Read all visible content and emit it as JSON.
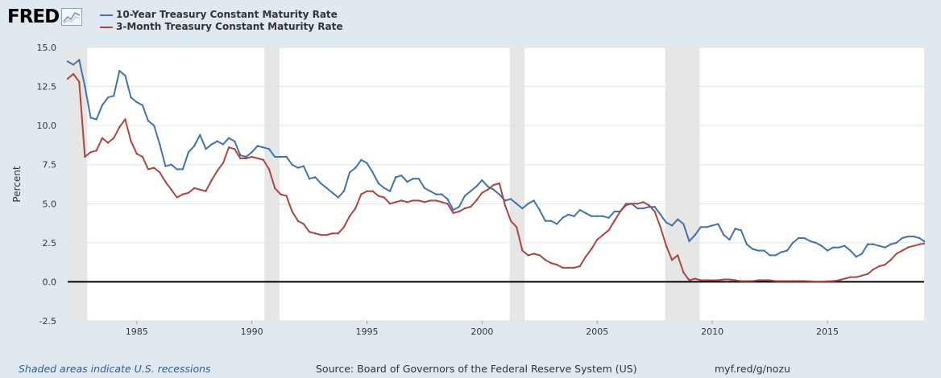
{
  "logo": {
    "text": "FRED",
    "icon": "line-chart-icon"
  },
  "footer": {
    "recession_note": "Shaded areas indicate U.S. recessions",
    "source": "Source: Board of Governors of the Federal Reserve System (US)",
    "short_url": "myf.red/g/nozu"
  },
  "chart_data": {
    "type": "line",
    "ylabel": "Percent",
    "ylim": [
      -2.5,
      15.0
    ],
    "yticks": [
      "15.0",
      "12.5",
      "10.0",
      "7.5",
      "5.0",
      "2.5",
      "0.0",
      "-2.5"
    ],
    "xlim": [
      1982.0,
      2019.2
    ],
    "xticks": [
      "1985",
      "1990",
      "1995",
      "2000",
      "2005",
      "2010",
      "2015"
    ],
    "grid": true,
    "legend_position": "top-left",
    "recessions": [
      [
        1982.0,
        1982.85
      ],
      [
        1990.55,
        1991.2
      ],
      [
        2001.2,
        2001.85
      ],
      [
        2007.95,
        2009.45
      ]
    ],
    "series": [
      {
        "name": "10-Year Treasury Constant Maturity Rate",
        "color": "#4572a7",
        "x": [
          1982.0,
          1982.25,
          1982.5,
          1982.75,
          1983.0,
          1983.25,
          1983.5,
          1983.75,
          1984.0,
          1984.25,
          1984.5,
          1984.75,
          1985.0,
          1985.25,
          1985.5,
          1985.75,
          1986.0,
          1986.25,
          1986.5,
          1986.75,
          1987.0,
          1987.25,
          1987.5,
          1987.75,
          1988.0,
          1988.25,
          1988.5,
          1988.75,
          1989.0,
          1989.25,
          1989.5,
          1989.75,
          1990.0,
          1990.25,
          1990.5,
          1990.75,
          1991.0,
          1991.25,
          1991.5,
          1991.75,
          1992.0,
          1992.25,
          1992.5,
          1992.75,
          1993.0,
          1993.25,
          1993.5,
          1993.75,
          1994.0,
          1994.25,
          1994.5,
          1994.75,
          1995.0,
          1995.25,
          1995.5,
          1995.75,
          1996.0,
          1996.25,
          1996.5,
          1996.75,
          1997.0,
          1997.25,
          1997.5,
          1997.75,
          1998.0,
          1998.25,
          1998.5,
          1998.75,
          1999.0,
          1999.25,
          1999.5,
          1999.75,
          2000.0,
          2000.25,
          2000.5,
          2000.75,
          2001.0,
          2001.25,
          2001.5,
          2001.75,
          2002.0,
          2002.25,
          2002.5,
          2002.75,
          2003.0,
          2003.25,
          2003.5,
          2003.75,
          2004.0,
          2004.25,
          2004.5,
          2004.75,
          2005.0,
          2005.25,
          2005.5,
          2005.75,
          2006.0,
          2006.25,
          2006.5,
          2006.75,
          2007.0,
          2007.25,
          2007.5,
          2007.75,
          2008.0,
          2008.25,
          2008.5,
          2008.75,
          2009.0,
          2009.25,
          2009.5,
          2009.75,
          2010.0,
          2010.25,
          2010.5,
          2010.75,
          2011.0,
          2011.25,
          2011.5,
          2011.75,
          2012.0,
          2012.25,
          2012.5,
          2012.75,
          2013.0,
          2013.25,
          2013.5,
          2013.75,
          2014.0,
          2014.25,
          2014.5,
          2014.75,
          2015.0,
          2015.25,
          2015.5,
          2015.75,
          2016.0,
          2016.25,
          2016.5,
          2016.75,
          2017.0,
          2017.25,
          2017.5,
          2017.75,
          2018.0,
          2018.25,
          2018.5,
          2018.75,
          2019.0,
          2019.2
        ],
        "values": [
          14.1,
          13.9,
          14.2,
          12.5,
          10.5,
          10.4,
          11.3,
          11.8,
          11.9,
          13.5,
          13.2,
          11.8,
          11.5,
          11.3,
          10.3,
          10.0,
          8.8,
          7.4,
          7.5,
          7.2,
          7.2,
          8.3,
          8.7,
          9.4,
          8.5,
          8.8,
          9.0,
          8.8,
          9.2,
          9.0,
          8.1,
          8.0,
          8.3,
          8.7,
          8.6,
          8.5,
          8.0,
          8.0,
          8.0,
          7.5,
          7.3,
          7.4,
          6.6,
          6.7,
          6.3,
          6.0,
          5.7,
          5.4,
          5.8,
          7.0,
          7.3,
          7.8,
          7.6,
          7.0,
          6.3,
          6.0,
          5.8,
          6.7,
          6.8,
          6.4,
          6.6,
          6.6,
          6.0,
          5.8,
          5.6,
          5.6,
          5.3,
          4.6,
          4.8,
          5.5,
          5.8,
          6.1,
          6.5,
          6.1,
          5.9,
          5.6,
          5.2,
          5.3,
          5.0,
          4.7,
          5.0,
          5.2,
          4.6,
          3.9,
          3.9,
          3.7,
          4.1,
          4.3,
          4.2,
          4.6,
          4.4,
          4.2,
          4.2,
          4.2,
          4.1,
          4.5,
          4.5,
          5.0,
          5.0,
          4.7,
          4.7,
          4.8,
          4.8,
          4.3,
          3.8,
          3.6,
          4.0,
          3.7,
          2.6,
          3.0,
          3.5,
          3.5,
          3.6,
          3.7,
          3.0,
          2.7,
          3.4,
          3.3,
          2.4,
          2.1,
          2.0,
          2.0,
          1.7,
          1.7,
          1.9,
          2.0,
          2.5,
          2.8,
          2.8,
          2.6,
          2.5,
          2.3,
          2.0,
          2.2,
          2.2,
          2.3,
          2.0,
          1.6,
          1.8,
          2.4,
          2.4,
          2.3,
          2.2,
          2.4,
          2.5,
          2.8,
          2.9,
          2.9,
          2.8,
          2.6
        ]
      },
      {
        "name": "3-Month Treasury Constant Maturity Rate",
        "color": "#aa4643",
        "x": [
          1982.0,
          1982.25,
          1982.5,
          1982.75,
          1983.0,
          1983.25,
          1983.5,
          1983.75,
          1984.0,
          1984.25,
          1984.5,
          1984.75,
          1985.0,
          1985.25,
          1985.5,
          1985.75,
          1986.0,
          1986.25,
          1986.5,
          1986.75,
          1987.0,
          1987.25,
          1987.5,
          1987.75,
          1988.0,
          1988.25,
          1988.5,
          1988.75,
          1989.0,
          1989.25,
          1989.5,
          1989.75,
          1990.0,
          1990.25,
          1990.5,
          1990.75,
          1991.0,
          1991.25,
          1991.5,
          1991.75,
          1992.0,
          1992.25,
          1992.5,
          1992.75,
          1993.0,
          1993.25,
          1993.5,
          1993.75,
          1994.0,
          1994.25,
          1994.5,
          1994.75,
          1995.0,
          1995.25,
          1995.5,
          1995.75,
          1996.0,
          1996.25,
          1996.5,
          1996.75,
          1997.0,
          1997.25,
          1997.5,
          1997.75,
          1998.0,
          1998.25,
          1998.5,
          1998.75,
          1999.0,
          1999.25,
          1999.5,
          1999.75,
          2000.0,
          2000.25,
          2000.5,
          2000.75,
          2001.0,
          2001.25,
          2001.5,
          2001.75,
          2002.0,
          2002.25,
          2002.5,
          2002.75,
          2003.0,
          2003.25,
          2003.5,
          2003.75,
          2004.0,
          2004.25,
          2004.5,
          2004.75,
          2005.0,
          2005.25,
          2005.5,
          2005.75,
          2006.0,
          2006.25,
          2006.5,
          2006.75,
          2007.0,
          2007.25,
          2007.5,
          2007.75,
          2008.0,
          2008.25,
          2008.5,
          2008.75,
          2009.0,
          2009.25,
          2009.5,
          2009.75,
          2010.0,
          2010.25,
          2010.5,
          2010.75,
          2011.0,
          2011.25,
          2011.5,
          2011.75,
          2012.0,
          2012.25,
          2012.5,
          2012.75,
          2013.0,
          2013.25,
          2013.5,
          2013.75,
          2014.0,
          2014.25,
          2014.5,
          2014.75,
          2015.0,
          2015.25,
          2015.5,
          2015.75,
          2016.0,
          2016.25,
          2016.5,
          2016.75,
          2017.0,
          2017.25,
          2017.5,
          2017.75,
          2018.0,
          2018.25,
          2018.5,
          2018.75,
          2019.0,
          2019.2
        ],
        "values": [
          13.0,
          13.3,
          12.8,
          8.0,
          8.3,
          8.4,
          9.2,
          8.9,
          9.2,
          9.9,
          10.4,
          9.0,
          8.2,
          8.0,
          7.2,
          7.3,
          7.0,
          6.4,
          5.9,
          5.4,
          5.6,
          5.7,
          6.0,
          5.9,
          5.8,
          6.5,
          7.1,
          7.6,
          8.6,
          8.5,
          7.9,
          7.9,
          8.0,
          7.9,
          7.8,
          7.2,
          6.0,
          5.6,
          5.5,
          4.5,
          3.9,
          3.7,
          3.2,
          3.1,
          3.0,
          3.0,
          3.1,
          3.1,
          3.5,
          4.2,
          4.7,
          5.6,
          5.8,
          5.8,
          5.5,
          5.4,
          5.0,
          5.1,
          5.2,
          5.1,
          5.2,
          5.2,
          5.1,
          5.2,
          5.2,
          5.1,
          5.0,
          4.4,
          4.5,
          4.7,
          4.8,
          5.2,
          5.7,
          5.9,
          6.2,
          6.3,
          4.9,
          3.9,
          3.5,
          2.0,
          1.7,
          1.8,
          1.7,
          1.4,
          1.2,
          1.1,
          0.9,
          0.9,
          0.9,
          1.0,
          1.6,
          2.1,
          2.7,
          3.0,
          3.3,
          3.9,
          4.5,
          4.9,
          5.0,
          5.0,
          5.1,
          4.9,
          4.5,
          3.5,
          2.3,
          1.4,
          1.7,
          0.6,
          0.1,
          0.2,
          0.1,
          0.1,
          0.1,
          0.1,
          0.15,
          0.15,
          0.1,
          0.05,
          0.05,
          0.05,
          0.1,
          0.1,
          0.1,
          0.05,
          0.05,
          0.05,
          0.05,
          0.05,
          0.05,
          0.03,
          0.02,
          0.02,
          0.03,
          0.05,
          0.1,
          0.2,
          0.3,
          0.3,
          0.4,
          0.5,
          0.8,
          1.0,
          1.1,
          1.4,
          1.8,
          2.0,
          2.2,
          2.3,
          2.4,
          2.45
        ]
      }
    ]
  }
}
